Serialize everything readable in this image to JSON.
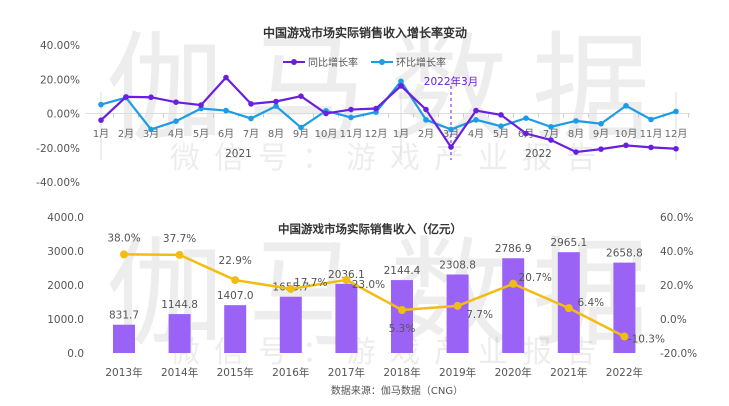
{
  "watermark": {
    "main": "伽马数据",
    "sub": "微信号：游戏产业报告"
  },
  "source": "数据来源：伽马数据（CNG）",
  "colors": {
    "yoy": "#6a1fe0",
    "mom": "#1c9be6",
    "bar": "#9b63f5",
    "line": "#f2bd12",
    "text": "#555555",
    "title": "#333333"
  },
  "chart_data": [
    {
      "type": "line",
      "title": "中国游戏市场实际销售收入增长率变动",
      "categories": [
        "1月",
        "2月",
        "3月",
        "4月",
        "5月",
        "6月",
        "7月",
        "8月",
        "9月",
        "10月",
        "11月",
        "12月",
        "1月",
        "2月",
        "3月",
        "4月",
        "5月",
        "6月",
        "7月",
        "8月",
        "9月",
        "10月",
        "11月",
        "12月"
      ],
      "groups": [
        {
          "label": "2021",
          "from": 0,
          "to": 11
        },
        {
          "label": "2022",
          "from": 12,
          "to": 23
        }
      ],
      "yticks": [
        "40.00%",
        "20.00%",
        "0.00%",
        "-20.00%",
        "-40.00%"
      ],
      "ylim": [
        -40,
        40
      ],
      "annotation": {
        "label": "2022年3月",
        "index": 14
      },
      "legend": "top-center",
      "series": [
        {
          "name": "同比增长率",
          "color": "#6a1fe0",
          "values": [
            -3.9,
            9.7,
            9.5,
            6.6,
            4.9,
            21.0,
            5.6,
            7.0,
            10.1,
            0.0,
            2.3,
            2.9,
            16.1,
            2.3,
            -19.6,
            1.7,
            -0.8,
            -11.7,
            -15.5,
            -22.5,
            -20.8,
            -18.6,
            -19.8,
            -20.6
          ]
        },
        {
          "name": "环比增长率",
          "color": "#1c9be6",
          "values": [
            5.2,
            9.3,
            -9.3,
            -4.5,
            2.9,
            1.7,
            -2.9,
            4.3,
            -8.2,
            1.6,
            -2.3,
            0.8,
            18.8,
            -3.7,
            -9.3,
            -3.7,
            -7.4,
            -2.7,
            -7.8,
            -4.3,
            -6.0,
            4.5,
            -3.5,
            1.2
          ]
        }
      ]
    },
    {
      "type": "bar",
      "title": "中国游戏市场实际销售收入（亿元）",
      "categories": [
        "2013年",
        "2014年",
        "2015年",
        "2016年",
        "2017年",
        "2018年",
        "2019年",
        "2020年",
        "2021年",
        "2022年"
      ],
      "values": [
        831.7,
        1144.8,
        1407.0,
        1655.7,
        2036.1,
        2144.4,
        2308.8,
        2786.9,
        2965.1,
        2658.8
      ],
      "value_labels": [
        "831.7",
        "1144.8",
        "1407.0",
        "1655.7",
        "2036.1",
        "2144.4",
        "2308.8",
        "2786.9",
        "2965.1",
        "2658.8"
      ],
      "ylim": [
        0,
        4000
      ],
      "yticks": [
        "4000.0",
        "3000.0",
        "2000.0",
        "1000.0",
        "0.0"
      ],
      "growth": {
        "type": "line",
        "values": [
          38.0,
          37.7,
          22.9,
          17.7,
          23.0,
          5.3,
          7.7,
          20.7,
          6.4,
          -10.3
        ],
        "labels": [
          "38.0%",
          "37.7%",
          "22.9%",
          "17.7%",
          "23.0%",
          "5.3%",
          "7.7%",
          "20.7%",
          "6.4%",
          "-10.3%"
        ],
        "ylim": [
          -20,
          60
        ],
        "yticks": [
          "60.0%",
          "40.0%",
          "20.0%",
          "0.0%",
          "-20.0%"
        ]
      }
    }
  ]
}
